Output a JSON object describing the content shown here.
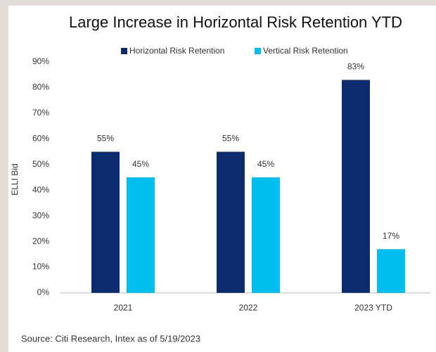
{
  "chart_data": {
    "type": "bar",
    "title": "Large Increase in Horizontal Risk Retention YTD",
    "y_label": "ELLI Bid",
    "source": "Source: Citi Research, Intex as of 5/19/2023",
    "categories": [
      "2021",
      "2022",
      "2023 YTD"
    ],
    "series": [
      {
        "name": "Horizontal Risk Retention",
        "color": "#0c2c6e",
        "values": [
          55,
          55,
          83
        ],
        "value_labels": [
          "55%",
          "55%",
          "83%"
        ]
      },
      {
        "name": "Vertical Risk Retention",
        "color": "#00bfef",
        "values": [
          45,
          45,
          17
        ],
        "value_labels": [
          "45%",
          "45%",
          "17%"
        ]
      }
    ],
    "ylim": [
      0,
      90
    ],
    "yticks": [
      {
        "value": 0,
        "label": "0%"
      },
      {
        "value": 10,
        "label": "10%"
      },
      {
        "value": 20,
        "label": "20%"
      },
      {
        "value": 30,
        "label": "30%"
      },
      {
        "value": 40,
        "label": "40%"
      },
      {
        "value": 50,
        "label": "50%"
      },
      {
        "value": 60,
        "label": "60%"
      },
      {
        "value": 70,
        "label": "70%"
      },
      {
        "value": 80,
        "label": "80%"
      },
      {
        "value": 90,
        "label": "90%"
      }
    ],
    "grid": false,
    "legend": "top"
  }
}
